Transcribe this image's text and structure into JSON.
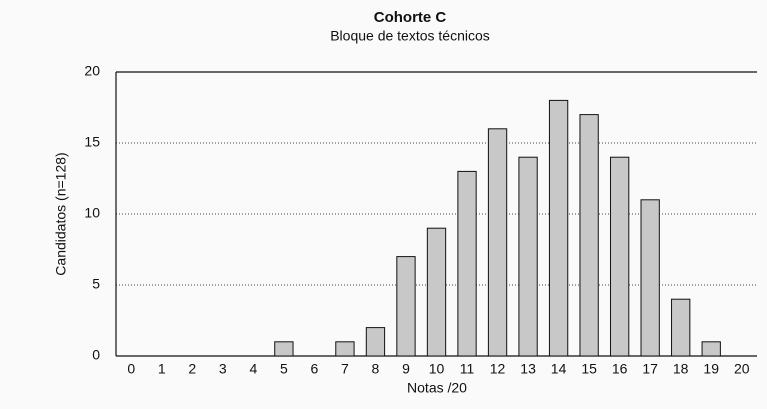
{
  "chart_data": {
    "type": "bar",
    "title": "Cohorte C",
    "subtitle": "Bloque de textos técnicos",
    "x_label": "Notas /20",
    "y_label": "Candidatos (n=128)",
    "categories": [
      "0",
      "1",
      "2",
      "3",
      "4",
      "5",
      "6",
      "7",
      "8",
      "9",
      "10",
      "11",
      "12",
      "13",
      "14",
      "15",
      "16",
      "17",
      "18",
      "19",
      "20"
    ],
    "values": [
      0,
      0,
      0,
      0,
      0,
      1,
      0,
      1,
      2,
      7,
      9,
      13,
      16,
      14,
      18,
      17,
      14,
      11,
      4,
      1,
      0
    ],
    "color": "#c8c8c8",
    "ylim": [
      0,
      20
    ],
    "yticks": [
      0,
      5,
      10,
      15,
      20
    ],
    "grid": true
  }
}
